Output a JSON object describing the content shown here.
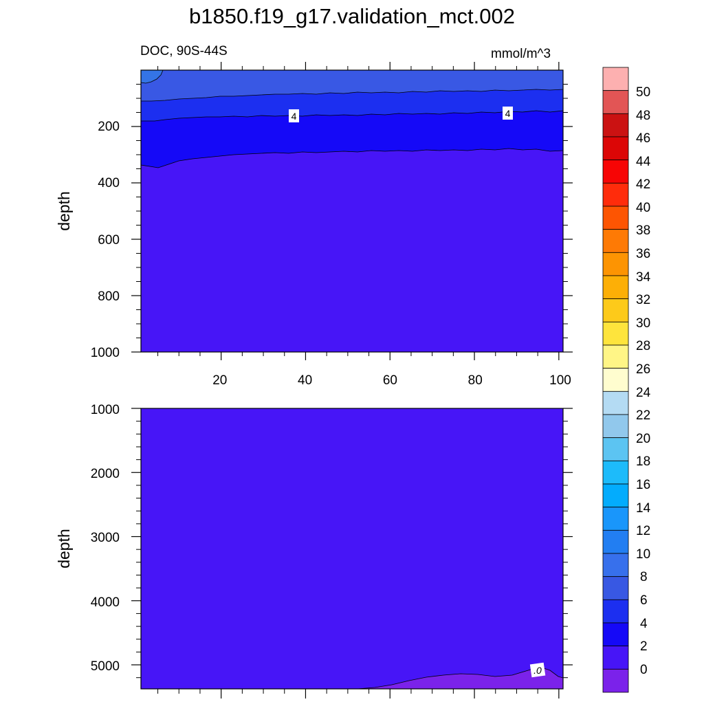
{
  "title": "b1850.f19_g17.validation_mct.002",
  "subtitle_left": "DOC, 90S-44S",
  "subtitle_right": "mmol/m^3",
  "chart_data": [
    {
      "type": "contour",
      "panel": "upper",
      "ylabel": "depth",
      "x_ticks": [
        "20",
        "40",
        "60",
        "80",
        "100"
      ],
      "y_ticks": [
        "200",
        "400",
        "600",
        "800",
        "1000"
      ],
      "xlim": [
        1,
        101
      ],
      "ylim": [
        1000,
        0
      ],
      "contour_labels": [
        {
          "text": "4",
          "x": 37,
          "y": 170
        },
        {
          "text": "4",
          "x": 87,
          "y": 163
        }
      ],
      "bands": [
        {
          "min": 0,
          "max": 2,
          "color": "#4715f7"
        },
        {
          "min": 2,
          "max": 4,
          "color": "#1509f7"
        },
        {
          "min": 4,
          "max": 6,
          "color": "#1c2ff0"
        },
        {
          "min": 6,
          "max": 8,
          "color": "#3958e4"
        },
        {
          "min": 8,
          "max": 10,
          "color": "#3474e6"
        }
      ]
    },
    {
      "type": "contour",
      "panel": "lower",
      "ylabel": "depth",
      "y_ticks": [
        "1000",
        "2000",
        "3000",
        "4000",
        "5000"
      ],
      "xlim": [
        1,
        101
      ],
      "ylim": [
        5375,
        1000
      ],
      "contour_labels": [
        {
          "text": ".0",
          "x": 94,
          "y": 5090
        }
      ],
      "bands": [
        {
          "min": -2,
          "max": 0,
          "color": "#7b22ea"
        },
        {
          "min": 0,
          "max": 2,
          "color": "#4715f7"
        }
      ]
    }
  ],
  "colorbar": {
    "labels": [
      "50",
      "48",
      "46",
      "44",
      "42",
      "40",
      "38",
      "36",
      "34",
      "32",
      "30",
      "28",
      "26",
      "24",
      "22",
      "20",
      "18",
      "16",
      "14",
      "12",
      "10",
      "8",
      "6",
      "4",
      "2",
      "0"
    ],
    "colors": [
      "#fdb0b0",
      "#e25555",
      "#cb1212",
      "#dc0606",
      "#f70505",
      "#ff2c0b",
      "#fd5502",
      "#fe7a05",
      "#fd9402",
      "#fdaf06",
      "#fdca1a",
      "#fee43c",
      "#fff586",
      "#fffdcf",
      "#b4dbf3",
      "#91c8ec",
      "#5cc4f2",
      "#1dbbfa",
      "#03acfd",
      "#1996fb",
      "#227ef2",
      "#3770ec",
      "#3858e3",
      "#1c2ff0",
      "#1509f7",
      "#4715f7",
      "#7b22ea"
    ]
  }
}
